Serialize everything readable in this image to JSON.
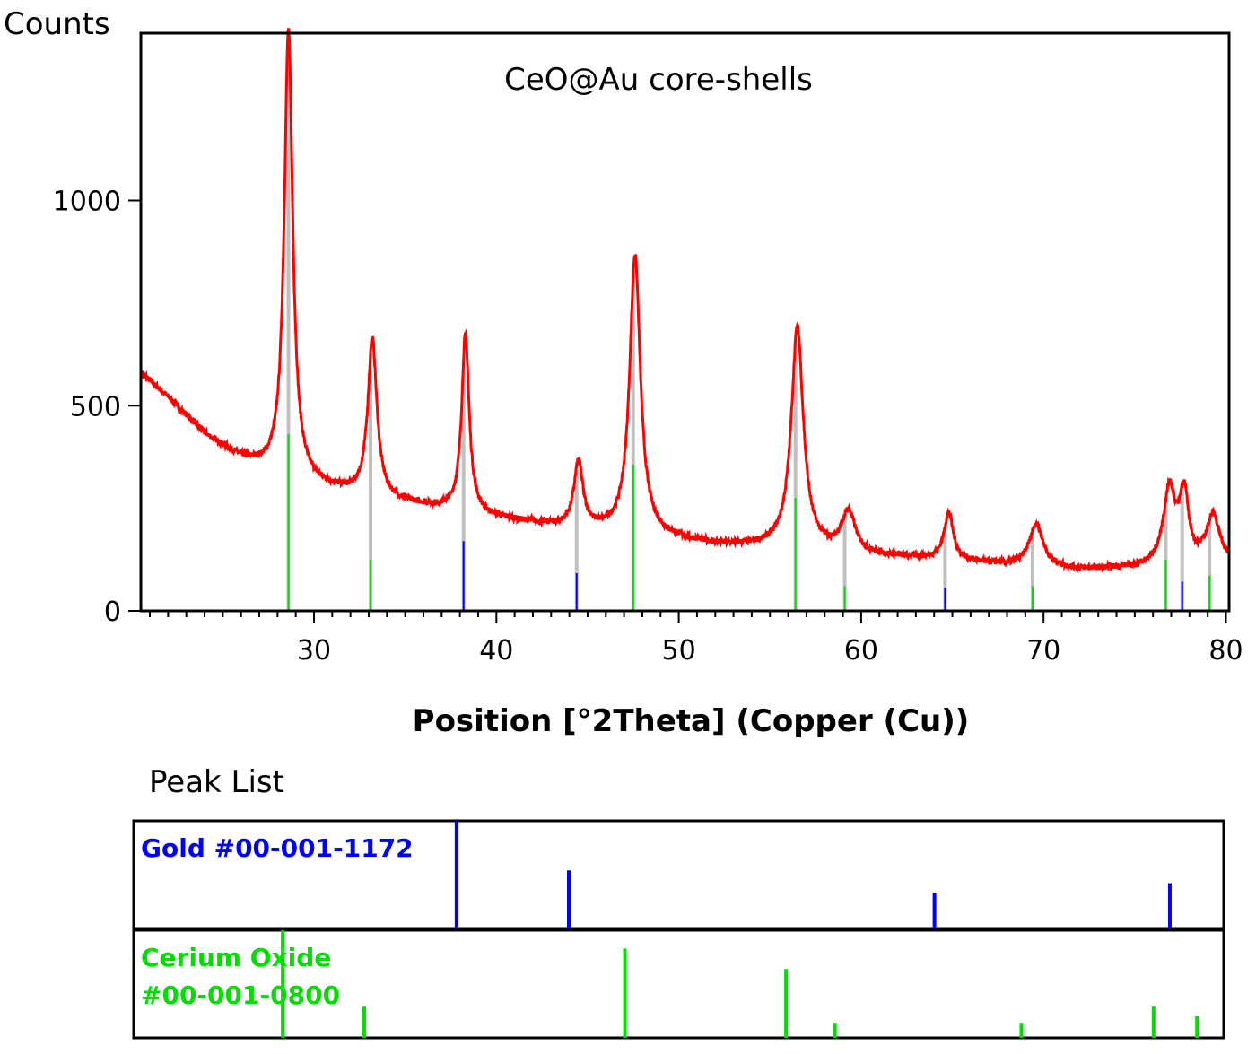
{
  "chart_data": {
    "type": "line",
    "title": "CeO@Au core-shells",
    "ylabel": "Counts",
    "xlabel": "Position [°2Theta] (Copper (Cu))",
    "xlim": [
      20.5,
      80.2
    ],
    "ylim": [
      0,
      1410
    ],
    "xticks": [
      30,
      40,
      50,
      60,
      70,
      80
    ],
    "yticks": [
      0,
      500,
      1000
    ],
    "line_color": "#ff0000",
    "background": [
      [
        20.5,
        580
      ],
      [
        22,
        520
      ],
      [
        24,
        430
      ],
      [
        26,
        370
      ],
      [
        28,
        330
      ],
      [
        30,
        305
      ],
      [
        33,
        275
      ],
      [
        36,
        255
      ],
      [
        40,
        225
      ],
      [
        44,
        200
      ],
      [
        48,
        185
      ],
      [
        52,
        160
      ],
      [
        56,
        150
      ],
      [
        60,
        135
      ],
      [
        64,
        125
      ],
      [
        68,
        110
      ],
      [
        72,
        100
      ],
      [
        76,
        105
      ],
      [
        80,
        110
      ]
    ],
    "peaks": [
      {
        "pos": 28.6,
        "height": 1090,
        "width": 0.28
      },
      {
        "pos": 33.2,
        "height": 385,
        "width": 0.3
      },
      {
        "pos": 38.3,
        "height": 430,
        "width": 0.25
      },
      {
        "pos": 44.5,
        "height": 160,
        "width": 0.3
      },
      {
        "pos": 47.6,
        "height": 680,
        "width": 0.35
      },
      {
        "pos": 56.5,
        "height": 540,
        "width": 0.4
      },
      {
        "pos": 59.3,
        "height": 100,
        "width": 0.45
      },
      {
        "pos": 64.8,
        "height": 115,
        "width": 0.3
      },
      {
        "pos": 69.6,
        "height": 105,
        "width": 0.45
      },
      {
        "pos": 76.9,
        "height": 185,
        "width": 0.4
      },
      {
        "pos": 77.7,
        "height": 165,
        "width": 0.3
      },
      {
        "pos": 79.3,
        "height": 120,
        "width": 0.45
      }
    ],
    "peak_list": {
      "title": "Peak List",
      "phases": [
        {
          "name": "Gold #00-001-1172",
          "name_lines": [
            "Gold #00-001-1172"
          ],
          "color": "#0000ff",
          "lines": [
            [
              38.2,
              100
            ],
            [
              44.4,
              54
            ],
            [
              64.6,
              33
            ],
            [
              77.6,
              42
            ]
          ]
        },
        {
          "name": "Cerium Oxide #00-001-0800",
          "name_lines": [
            "Cerium Oxide",
            "#00-001-0800"
          ],
          "color": "#00dd00",
          "lines": [
            [
              28.6,
              100
            ],
            [
              33.1,
              29
            ],
            [
              47.5,
              83
            ],
            [
              56.4,
              64
            ],
            [
              59.1,
              14
            ],
            [
              69.4,
              14
            ],
            [
              76.7,
              29
            ],
            [
              79.1,
              20
            ]
          ]
        }
      ]
    }
  }
}
